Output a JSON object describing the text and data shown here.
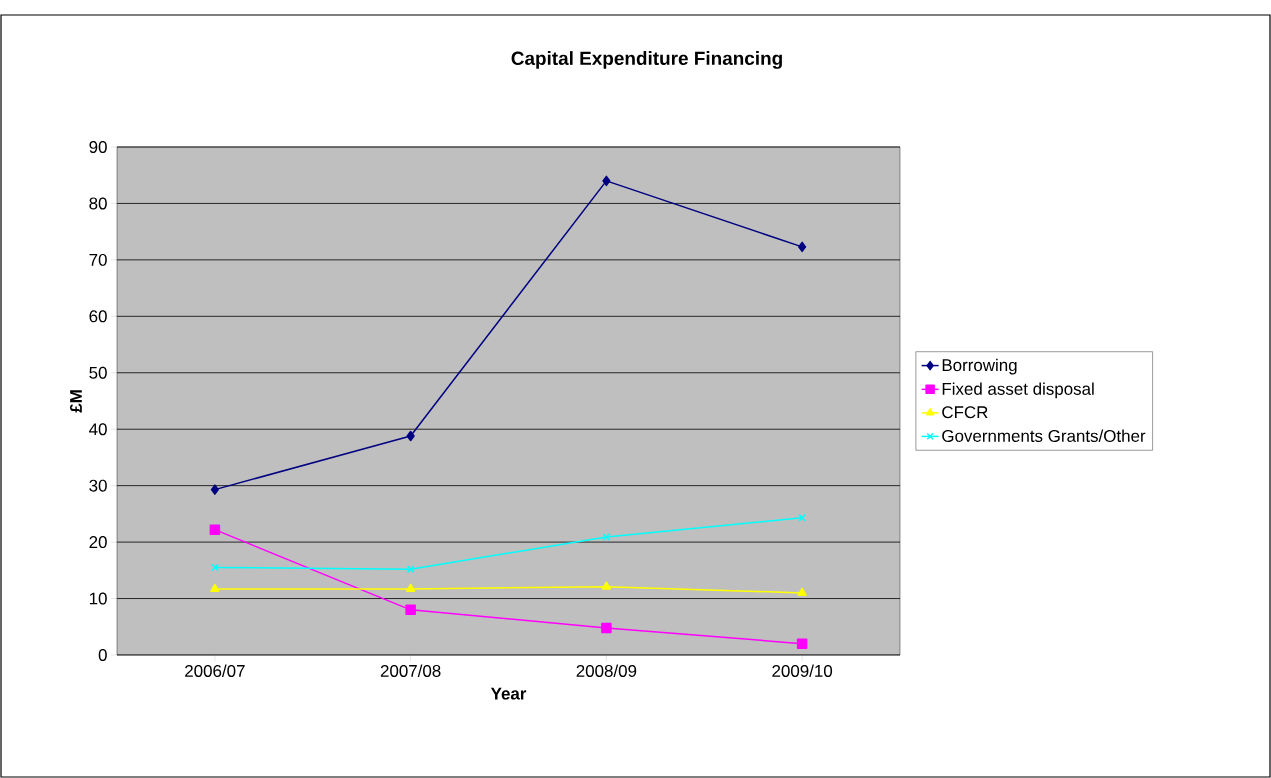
{
  "chart_data": {
    "type": "line",
    "title": "Capital Expenditure Financing",
    "xlabel": "Year",
    "ylabel": "£M",
    "categories": [
      "2006/07",
      "2007/08",
      "2008/09",
      "2009/10"
    ],
    "series": [
      {
        "name": "Borrowing",
        "color": "#000080",
        "marker": "diamond",
        "values": [
          29.3,
          38.8,
          84,
          72.3
        ]
      },
      {
        "name": "Fixed asset disposal",
        "color": "#ff00ff",
        "marker": "square",
        "values": [
          22.2,
          8,
          4.8,
          2
        ]
      },
      {
        "name": "CFCR",
        "color": "#ffff00",
        "marker": "triangle",
        "values": [
          11.7,
          11.7,
          12.1,
          11
        ]
      },
      {
        "name": "Governments Grants/Other",
        "color": "#00ffff",
        "marker": "cross",
        "values": [
          15.5,
          15.2,
          20.9,
          24.3
        ]
      }
    ],
    "ylim": [
      0,
      90
    ],
    "yticks": [
      0,
      10,
      20,
      30,
      40,
      50,
      60,
      70,
      80,
      90
    ],
    "grid": "y",
    "legend": "right"
  }
}
